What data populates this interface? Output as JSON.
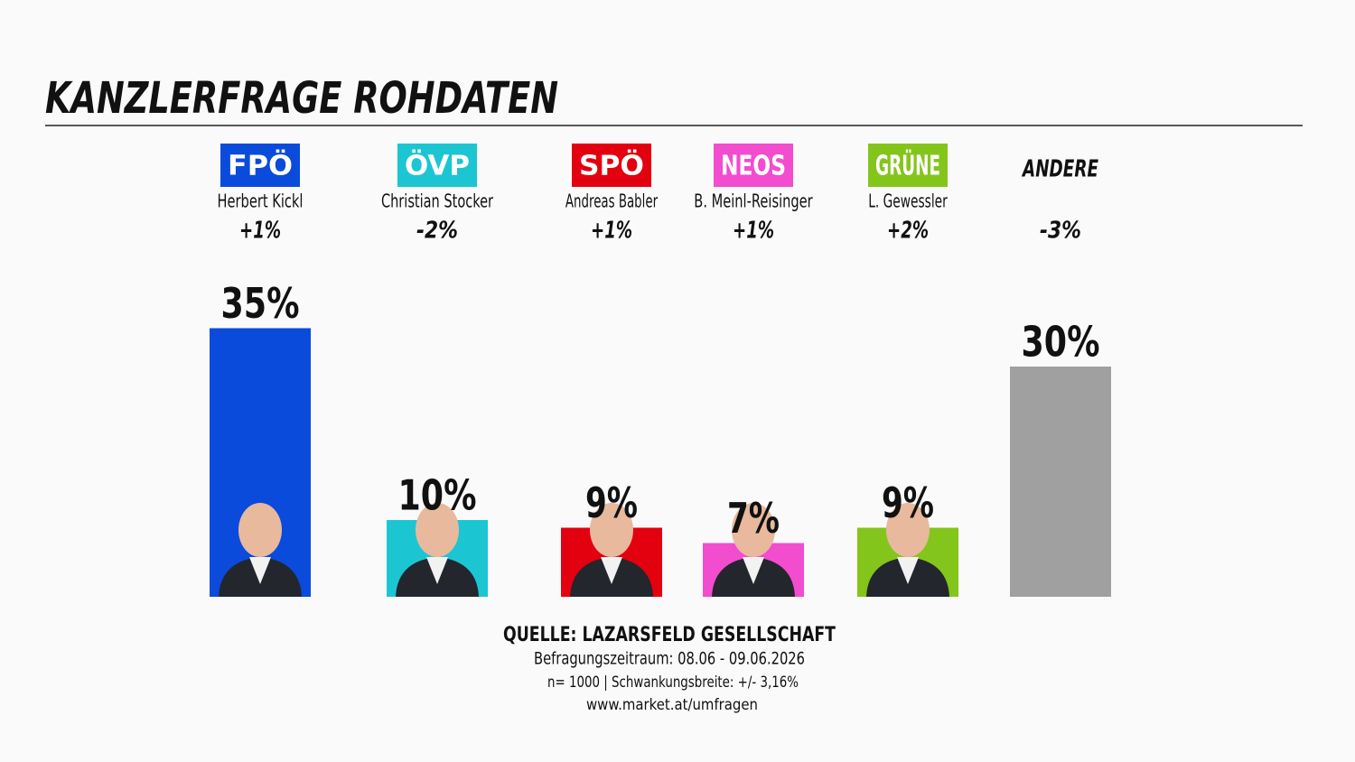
{
  "chart_data": {
    "type": "bar",
    "title": "KANZLERFRAGE ROHDATEN",
    "categories": [
      "FPÖ",
      "ÖVP",
      "SPÖ",
      "NEOS",
      "GRÜNE",
      "ANDERE"
    ],
    "candidates": [
      "Herbert Kickl",
      "Christian Stocker",
      "Andreas Babler",
      "B. Meinl-Reisinger",
      "L. Gewessler",
      null
    ],
    "changes": [
      "+1%",
      "-2%",
      "+1%",
      "+1%",
      "+2%",
      "-3%"
    ],
    "values": [
      35,
      10,
      9,
      7,
      9,
      30
    ],
    "value_labels": [
      "35%",
      "10%",
      "9%",
      "7%",
      "9%",
      "30%"
    ],
    "colors": [
      "#0a4bdc",
      "#1bc6d2",
      "#e3000f",
      "#f24ccf",
      "#84c51c",
      "#a0a0a0"
    ],
    "badge_colors": [
      "#0a4bdc",
      "#1bc6d2",
      "#e3000f",
      "#f24ccf",
      "#84c51c",
      null
    ],
    "source": "QUELLE: LAZARSFELD GESELLSCHAFT",
    "notes": [
      "Befragungszeitraum: 08.06 - 09.06.2026",
      "n= 1000 | Schwankungsbreite: +/- 3,16%",
      "www.market.at/umfragen"
    ]
  }
}
